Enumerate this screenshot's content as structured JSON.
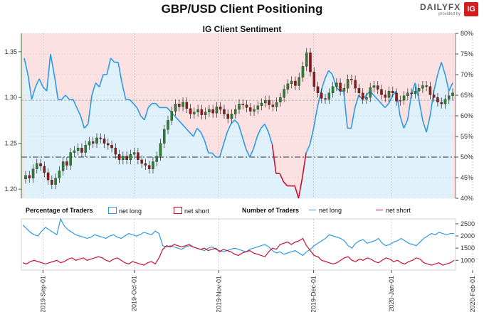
{
  "header": {
    "title": "GBP/USD Client Positioning",
    "subtitle": "IG Client Sentiment"
  },
  "logo": {
    "text": "DAILYFX",
    "sub": "provided by",
    "badge": "IG"
  },
  "colors": {
    "blue": "#2f9ae0",
    "red": "#c8102e",
    "up": "#2e7d32",
    "down": "#8b1a1a",
    "shade_long": "#dff1fb",
    "shade_short": "#fbe1e1"
  },
  "legend": {
    "pct_title": "Percentage of Traders",
    "pct_long": "net long",
    "pct_short": "net short",
    "num_title": "Number of Traders",
    "num_long": "net long",
    "num_short": "net short"
  },
  "chart_data": [
    {
      "type": "candlestick",
      "title": "IG Client Sentiment",
      "y_left_ticks": [
        "1.20",
        "1.25",
        "1.30",
        "1.35"
      ],
      "y_left_range": [
        1.19,
        1.37
      ],
      "y_right_ticks": [
        "40%",
        "45%",
        "50%",
        "55%",
        "60%",
        "65%",
        "70%",
        "75%",
        "80%"
      ],
      "y_right_range": [
        40,
        80
      ],
      "reference_lines": {
        "price": 1.297,
        "percent": 50
      },
      "price_close": [
        1.215,
        1.212,
        1.222,
        1.228,
        1.225,
        1.218,
        1.21,
        1.205,
        1.212,
        1.22,
        1.23,
        1.226,
        1.24,
        1.242,
        1.245,
        1.24,
        1.248,
        1.252,
        1.25,
        1.256,
        1.255,
        1.25,
        1.248,
        1.245,
        1.238,
        1.232,
        1.236,
        1.232,
        1.238,
        1.24,
        1.232,
        1.228,
        1.226,
        1.222,
        1.23,
        1.236,
        1.25,
        1.265,
        1.275,
        1.285,
        1.293,
        1.29,
        1.295,
        1.288,
        1.282,
        1.284,
        1.287,
        1.281,
        1.284,
        1.287,
        1.283,
        1.29,
        1.287,
        1.282,
        1.277,
        1.282,
        1.287,
        1.293,
        1.292,
        1.289,
        1.285,
        1.287,
        1.291,
        1.294,
        1.297,
        1.292,
        1.29,
        1.295,
        1.3,
        1.309,
        1.315,
        1.318,
        1.313,
        1.322,
        1.334,
        1.349,
        1.328,
        1.312,
        1.305,
        1.299,
        1.298,
        1.305,
        1.312,
        1.316,
        1.307,
        1.31,
        1.32,
        1.319,
        1.31,
        1.305,
        1.298,
        1.3,
        1.311,
        1.313,
        1.309,
        1.303,
        1.3,
        1.307,
        1.305,
        1.296,
        1.297,
        1.302,
        1.305,
        1.304,
        1.307,
        1.31,
        1.313,
        1.312,
        1.303,
        1.3,
        1.295,
        1.293,
        1.298,
        1.302,
        1.305
      ],
      "percent_long_series": [
        74,
        70,
        64,
        67,
        69,
        67,
        66,
        75,
        70,
        64,
        64,
        65,
        64,
        64,
        62,
        60,
        57,
        58,
        65,
        68,
        67,
        70,
        70,
        74,
        73,
        73,
        68,
        64,
        64,
        63,
        62,
        60,
        59,
        62,
        63,
        63,
        62,
        62,
        62,
        61,
        60,
        59,
        58,
        57,
        56,
        55,
        57,
        56,
        54,
        51,
        51,
        50,
        50,
        53,
        56,
        58,
        59,
        58,
        55,
        52,
        50,
        52,
        55,
        57,
        58,
        56,
        53,
        46,
        46,
        44,
        43,
        43,
        43,
        40,
        45,
        51,
        53,
        57,
        62,
        66,
        69,
        71,
        70,
        67,
        66,
        66,
        57,
        57,
        62,
        65,
        64,
        65,
        66,
        65,
        64,
        63,
        62,
        63,
        65,
        66,
        60,
        57,
        59,
        65,
        68,
        64,
        59,
        56,
        60,
        66,
        70,
        73,
        70,
        66,
        68
      ],
      "x_ticks": [
        "2019-Sep-01",
        "2019-Oct-01",
        "2019-Nov-01",
        "2019-Dec-01",
        "2020-Jan-01",
        "2020-Feb-01"
      ]
    },
    {
      "type": "line",
      "title": "Number of Traders",
      "y_ticks": [
        "1000",
        "1500",
        "2000",
        "2500"
      ],
      "y_range": [
        600,
        2700
      ],
      "series": [
        {
          "name": "net long",
          "values": [
            2450,
            2300,
            2150,
            2050,
            2000,
            2200,
            2350,
            2250,
            2150,
            2050,
            2700,
            2400,
            2250,
            2150,
            2050,
            2000,
            1950,
            1900,
            1950,
            2050,
            2000,
            1950,
            1900,
            2000,
            2050,
            1950,
            1900,
            2000,
            2100,
            2050,
            2000,
            2050,
            2150,
            2100,
            2050,
            2200,
            2100,
            1600,
            1550,
            1600,
            1550,
            1500,
            1450,
            1550,
            1600,
            1550,
            1500,
            1450,
            1400,
            1500,
            1550,
            1450,
            1400,
            1350,
            1400,
            1450,
            1500,
            1450,
            1400,
            1350,
            1450,
            1500,
            1550,
            1600,
            1650,
            1550,
            1400,
            1300,
            1350,
            1250,
            1300,
            1350,
            1400,
            1300,
            1200,
            1350,
            1450,
            1600,
            1700,
            1800,
            1900,
            2050,
            2000,
            1950,
            1900,
            1800,
            1600,
            1500,
            1700,
            1800,
            1850,
            1700,
            1750,
            1800,
            1900,
            1700,
            1600,
            1650,
            1750,
            1800,
            1900,
            1800,
            1700,
            1650,
            1600,
            1750,
            1900,
            2000,
            2100,
            2050,
            2150,
            2100,
            2050,
            2100,
            2100
          ]
        },
        {
          "name": "net short",
          "values": [
            900,
            850,
            950,
            1000,
            950,
            900,
            850,
            900,
            950,
            1000,
            900,
            950,
            1050,
            1100,
            1000,
            1050,
            1100,
            1000,
            1050,
            1100,
            1150,
            1100,
            1000,
            950,
            1050,
            1100,
            1000,
            900,
            850,
            950,
            900,
            850,
            800,
            900,
            950,
            850,
            1100,
            1450,
            1600,
            1550,
            1650,
            1600,
            1550,
            1600,
            1650,
            1550,
            1500,
            1450,
            1500,
            1400,
            1450,
            1500,
            1350,
            1450,
            1400,
            1350,
            1250,
            1200,
            1300,
            1350,
            1400,
            1300,
            1250,
            1200,
            1150,
            1350,
            1500,
            1450,
            1650,
            1700,
            1750,
            1650,
            1750,
            1800,
            1900,
            1600,
            1400,
            1200,
            1150,
            1000,
            950,
            900,
            850,
            900,
            1000,
            1100,
            1150,
            1000,
            950,
            1050,
            1000,
            1100,
            1050,
            950,
            900,
            1000,
            1100,
            1050,
            950,
            1000,
            900,
            850,
            950,
            1000,
            1100,
            1050,
            900,
            850,
            800,
            850,
            900,
            800,
            850,
            900,
            1000
          ]
        }
      ]
    }
  ]
}
